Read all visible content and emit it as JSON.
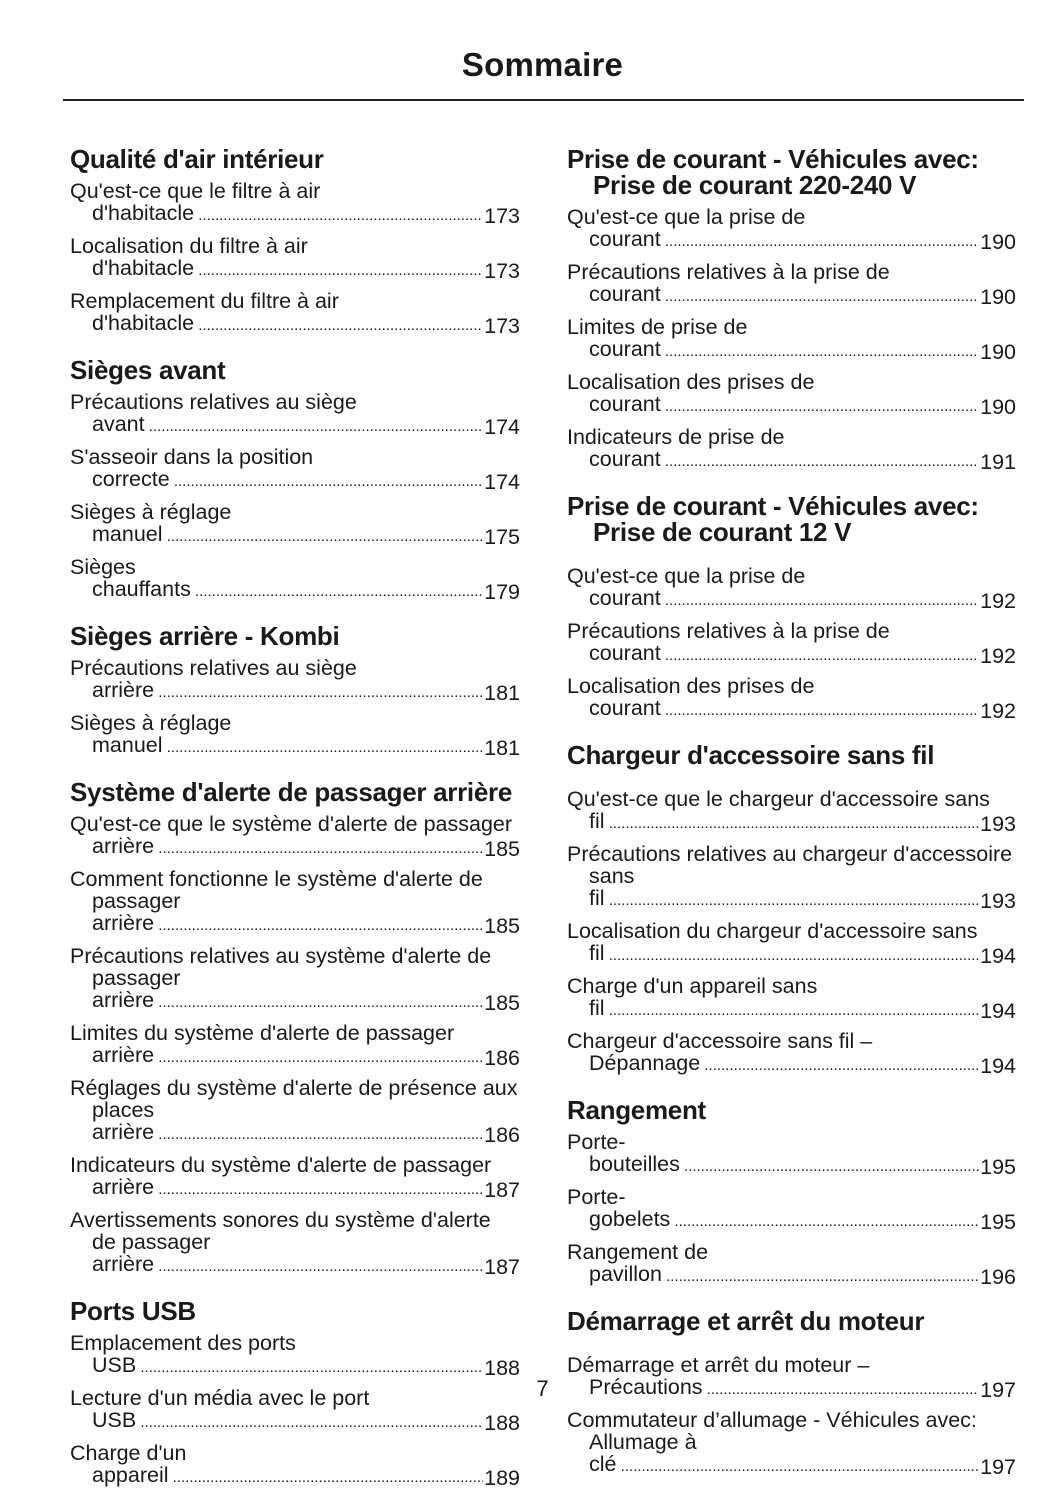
{
  "title": "Sommaire",
  "page_number": "7",
  "left_column": [
    {
      "heading": "Qualité d'air intérieur",
      "entries": [
        {
          "text": "Qu'est-ce que le filtre à air d'habitacle",
          "page": "173"
        },
        {
          "text": "Localisation du filtre à air d'habitacle",
          "page": "173"
        },
        {
          "text": "Remplacement du filtre à air d'habitacle",
          "page": "173"
        }
      ]
    },
    {
      "heading": "Sièges avant",
      "entries": [
        {
          "text": "Précautions relatives au siège avant",
          "page": "174"
        },
        {
          "text": "S'asseoir dans la position correcte",
          "page": "174"
        },
        {
          "text": "Sièges à réglage manuel",
          "page": "175"
        },
        {
          "text": "Sièges chauffants",
          "page": "179"
        }
      ]
    },
    {
      "heading": "Sièges arrière - Kombi",
      "entries": [
        {
          "text": "Précautions relatives au siège arrière",
          "page": "181"
        },
        {
          "text": "Sièges à réglage manuel",
          "page": "181"
        }
      ]
    },
    {
      "heading": "Système d'alerte de passager arrière",
      "entries": [
        {
          "text": "Qu'est-ce que le système d'alerte de passager arrière",
          "page": "185"
        },
        {
          "text": "Comment fonctionne le système d'alerte de passager arrière",
          "page": "185"
        },
        {
          "text": "Précautions relatives au système d'alerte de passager arrière",
          "page": "185"
        },
        {
          "text": "Limites du système d'alerte de passager arrière",
          "page": "186"
        },
        {
          "text": "Réglages du système d'alerte de présence aux places arrière",
          "page": "186"
        },
        {
          "text": "Indicateurs du système d'alerte de passager arrière",
          "page": "187"
        },
        {
          "text": "Avertissements sonores du système d'alerte de passager arrière",
          "page": "187"
        }
      ]
    },
    {
      "heading": "Ports USB",
      "entries": [
        {
          "text": "Emplacement des ports USB",
          "page": "188"
        },
        {
          "text": "Lecture d'un média avec le port USB",
          "page": "188"
        },
        {
          "text": "Charge d'un appareil",
          "page": "189"
        }
      ]
    }
  ],
  "right_column": [
    {
      "heading": "Prise de courant - Véhicules avec: Prise de courant 220-240 V",
      "entries": [
        {
          "text": "Qu'est-ce que la prise de courant",
          "page": "190"
        },
        {
          "text": "Précautions relatives à la prise de courant",
          "page": "190"
        },
        {
          "text": "Limites de prise de courant",
          "page": "190"
        },
        {
          "text": "Localisation des prises de courant",
          "page": "190"
        },
        {
          "text": "Indicateurs de prise de courant",
          "page": "191"
        }
      ]
    },
    {
      "heading": "Prise de courant - Véhicules avec: Prise de courant 12 V",
      "gap": true,
      "entries": [
        {
          "text": "Qu'est-ce que la prise de courant",
          "page": "192"
        },
        {
          "text": "Précautions relatives à la prise de courant",
          "page": "192"
        },
        {
          "text": "Localisation des prises de courant",
          "page": "192"
        }
      ]
    },
    {
      "heading": "Chargeur d'accessoire sans fil",
      "gap": true,
      "entries": [
        {
          "text": "Qu'est-ce que le chargeur d'accessoire sans fil",
          "page": "193"
        },
        {
          "text": "Précautions relatives au chargeur d'accessoire sans fil",
          "page": "193"
        },
        {
          "text": "Localisation du chargeur d'accessoire sans fil",
          "page": "194"
        },
        {
          "text": "Charge d'un appareil sans fil",
          "page": "194"
        },
        {
          "text": "Chargeur d'accessoire sans fil – Dépannage",
          "page": "194"
        }
      ]
    },
    {
      "heading": "Rangement",
      "entries": [
        {
          "text": "Porte-bouteilles",
          "page": "195"
        },
        {
          "text": "Porte-gobelets",
          "page": "195"
        },
        {
          "text": "Rangement de pavillon",
          "page": "196"
        }
      ]
    },
    {
      "heading": "Démarrage et arrêt du moteur",
      "gap": true,
      "entries": [
        {
          "text": "Démarrage et arrêt du moteur – Précautions",
          "page": "197"
        },
        {
          "text": "Commutateur d’allumage - Véhicules avec: Allumage à clé",
          "page": "197"
        }
      ]
    }
  ]
}
